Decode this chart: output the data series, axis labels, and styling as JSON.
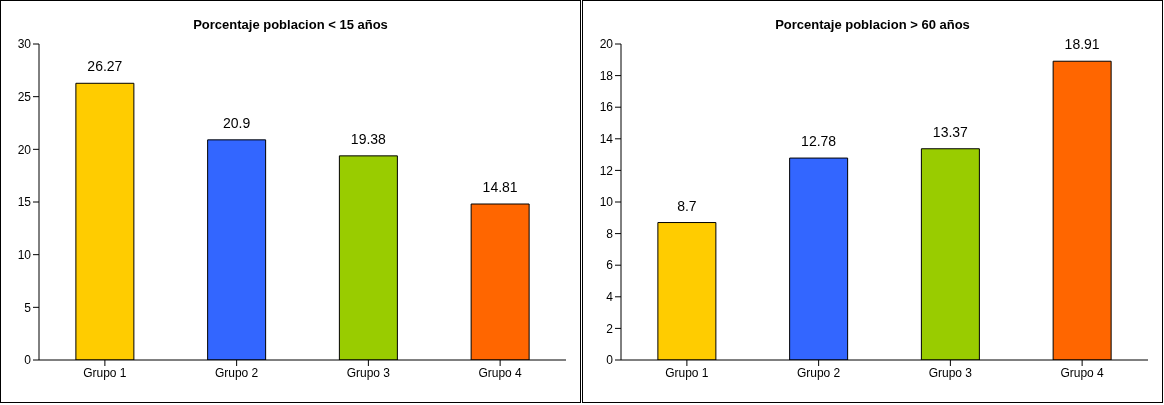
{
  "chart_data": [
    {
      "type": "bar",
      "title": "Porcentaje poblacion < 15 años",
      "categories": [
        "Grupo 1",
        "Grupo 2",
        "Grupo 3",
        "Grupo 4"
      ],
      "values": [
        26.27,
        20.9,
        19.38,
        14.81
      ],
      "colors": [
        "#ffcc00",
        "#3366ff",
        "#99cc00",
        "#ff6600"
      ],
      "ylim": [
        0,
        30
      ],
      "yticks": [
        0,
        5,
        10,
        15,
        20,
        25,
        30
      ],
      "data_labels": true
    },
    {
      "type": "bar",
      "title": "Porcentaje poblacion > 60 años",
      "categories": [
        "Grupo 1",
        "Grupo 2",
        "Grupo 3",
        "Grupo 4"
      ],
      "values": [
        8.7,
        12.78,
        13.37,
        18.91
      ],
      "colors": [
        "#ffcc00",
        "#3366ff",
        "#99cc00",
        "#ff6600"
      ],
      "ylim": [
        0,
        20
      ],
      "yticks": [
        0,
        2,
        4,
        6,
        8,
        10,
        12,
        14,
        16,
        18,
        20
      ],
      "data_labels": true
    }
  ]
}
